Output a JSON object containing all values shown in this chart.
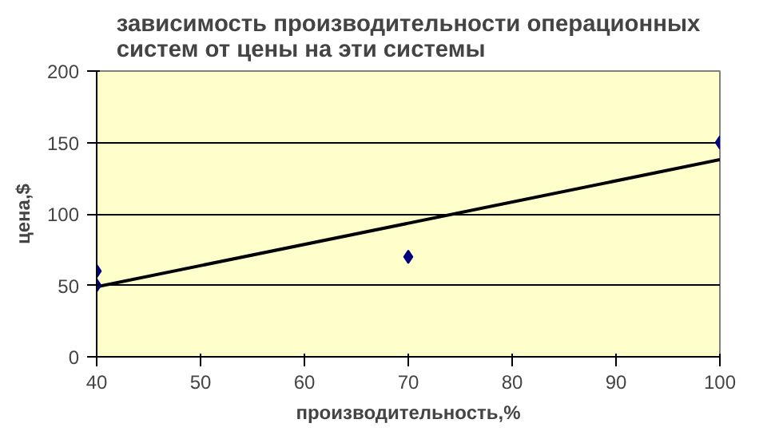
{
  "chart_data": {
    "type": "scatter",
    "title": "зависимость производительности операционных систем от цены на эти системы",
    "xlabel": "производительность,%",
    "ylabel": "цена,$",
    "series": [
      {
        "color": "#000080",
        "x": [
          40,
          40,
          70,
          100
        ],
        "values": [
          60,
          50,
          70,
          150
        ],
        "marker": "diamond"
      },
      {
        "type": "line",
        "color": "#000000",
        "x": [
          40,
          100
        ],
        "values": [
          49,
          138
        ],
        "marker": "none"
      }
    ],
    "xlim": [
      40,
      100
    ],
    "xticks": [
      40,
      50,
      60,
      70,
      80,
      90,
      100
    ],
    "ylim": [
      0,
      200
    ],
    "yticks": [
      0,
      50,
      100,
      150,
      200
    ],
    "grid": "y"
  }
}
